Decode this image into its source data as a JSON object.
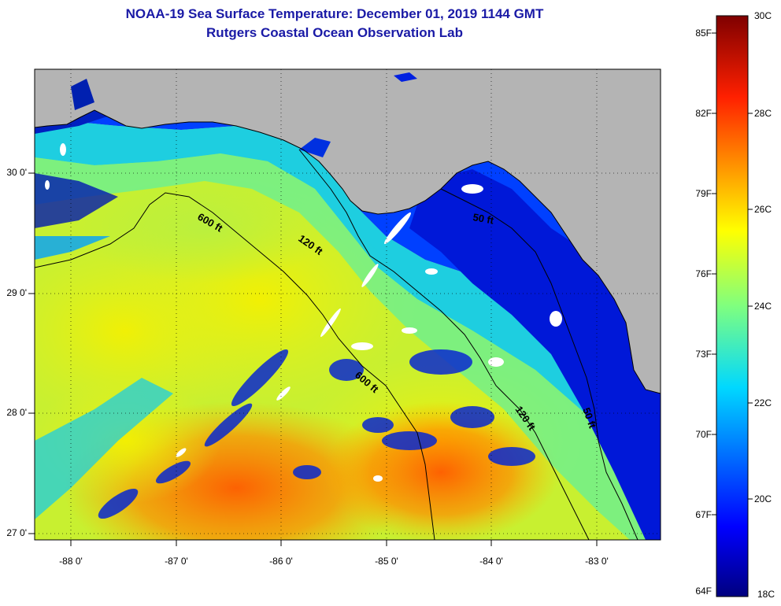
{
  "title": {
    "line1": "NOAA-19 Sea Surface Temperature:  December 01, 2019 1144 GMT",
    "line2": "Rutgers Coastal Ocean Observation Lab"
  },
  "map": {
    "lon_range": [
      -88.33,
      -82.45
    ],
    "lat_range": [
      26.97,
      30.85
    ],
    "lon_ticks": [
      -88,
      -87,
      -86,
      -85,
      -84,
      -83
    ],
    "lat_ticks": [
      27,
      28,
      29,
      30
    ],
    "lon_tick_labels": [
      "-88 0'",
      "-87 0'",
      "-86 0'",
      "-85 0'",
      "-84 0'",
      "-83 0'"
    ],
    "lat_tick_labels": [
      "27 0'",
      "28 0'",
      "29 0'",
      "30 0'"
    ],
    "grid": "dotted",
    "contour_labels": {
      "c600_west": "600 ft",
      "c120_mid": "120 ft",
      "c600_south": "600 ft",
      "c120_south": "120 ft",
      "c50_north": "50 ft",
      "c50_south": "50 ft"
    }
  },
  "colorbar": {
    "f_labels": [
      "85F",
      "82F",
      "79F",
      "76F",
      "73F",
      "70F",
      "67F",
      "64F"
    ],
    "c_labels": [
      "30C",
      "28C",
      "26C",
      "24C",
      "22C",
      "20C",
      "18C"
    ]
  },
  "colors": {
    "land": "#b4b4b4",
    "title": "#1a1aa6",
    "cold": "#00007f",
    "warm": "#ff5a00",
    "cloud": "#ffffff"
  }
}
